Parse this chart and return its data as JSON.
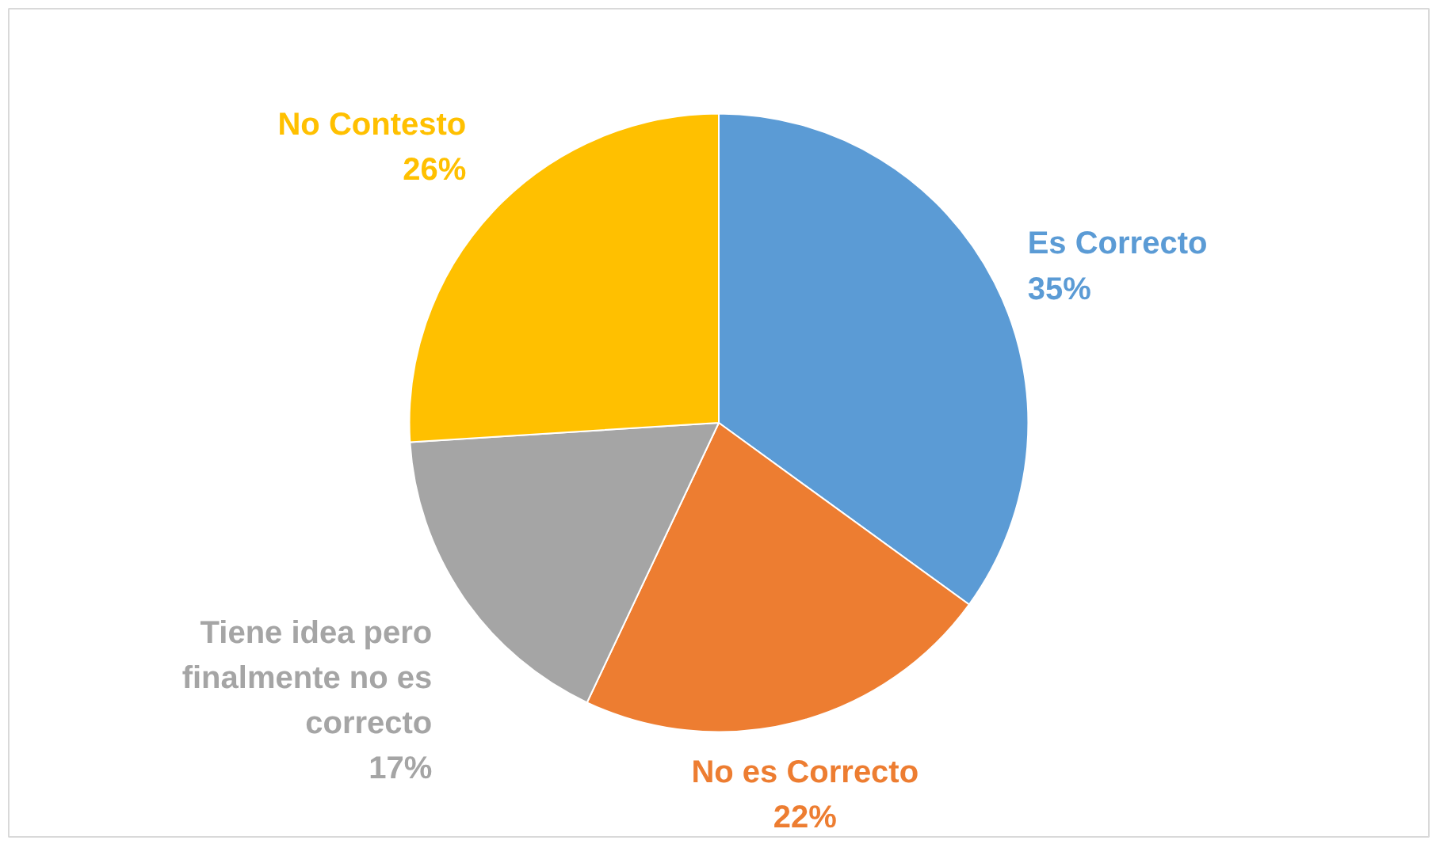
{
  "chart_data": {
    "type": "pie",
    "categories": [
      "Es Correcto",
      "No es Correcto",
      "Tiene idea pero finalmente no es correcto",
      "No Contesto"
    ],
    "values": [
      35,
      22,
      17,
      26
    ],
    "colors": [
      "#5b9bd5",
      "#ed7d31",
      "#a5a5a5",
      "#ffc000"
    ],
    "value_labels": [
      "35%",
      "22%",
      "17%",
      "26%"
    ]
  }
}
